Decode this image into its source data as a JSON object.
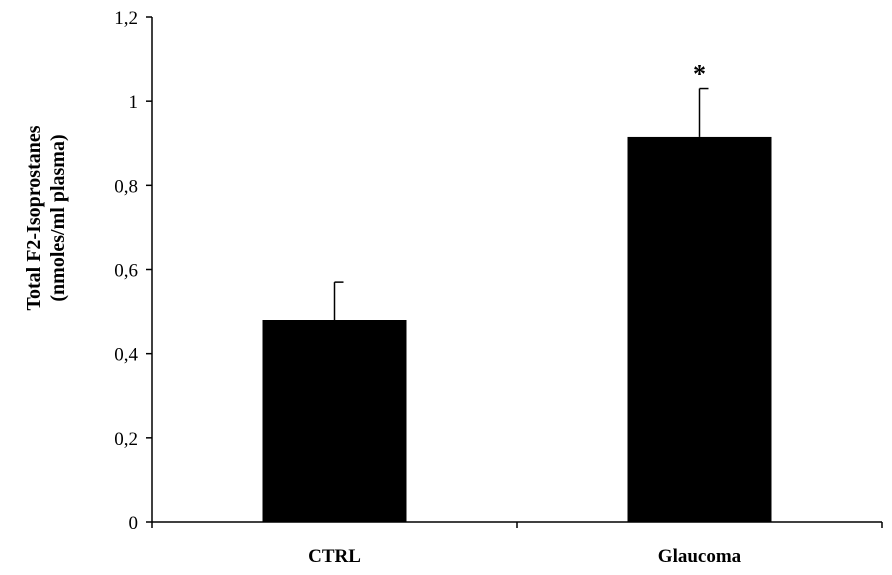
{
  "chart_data": {
    "type": "bar",
    "categories": [
      "CTRL",
      "Glaucoma"
    ],
    "values": [
      0.48,
      0.915
    ],
    "error": [
      0.09,
      0.115
    ],
    "annotations": [
      "",
      "*"
    ],
    "ylabel_lines": [
      "Total F2-Isoprostanes",
      "(nmoles/ml plasma)"
    ],
    "xlabel": "",
    "ylim": [
      0,
      1.2
    ],
    "yticks": [
      0,
      0.2,
      0.4,
      0.6,
      0.8,
      1,
      1.2
    ],
    "ytick_labels": [
      "0",
      "0,2",
      "0,4",
      "0,6",
      "0,8",
      "1",
      "1,2"
    ],
    "grid": false,
    "bar_color": "#000000"
  }
}
